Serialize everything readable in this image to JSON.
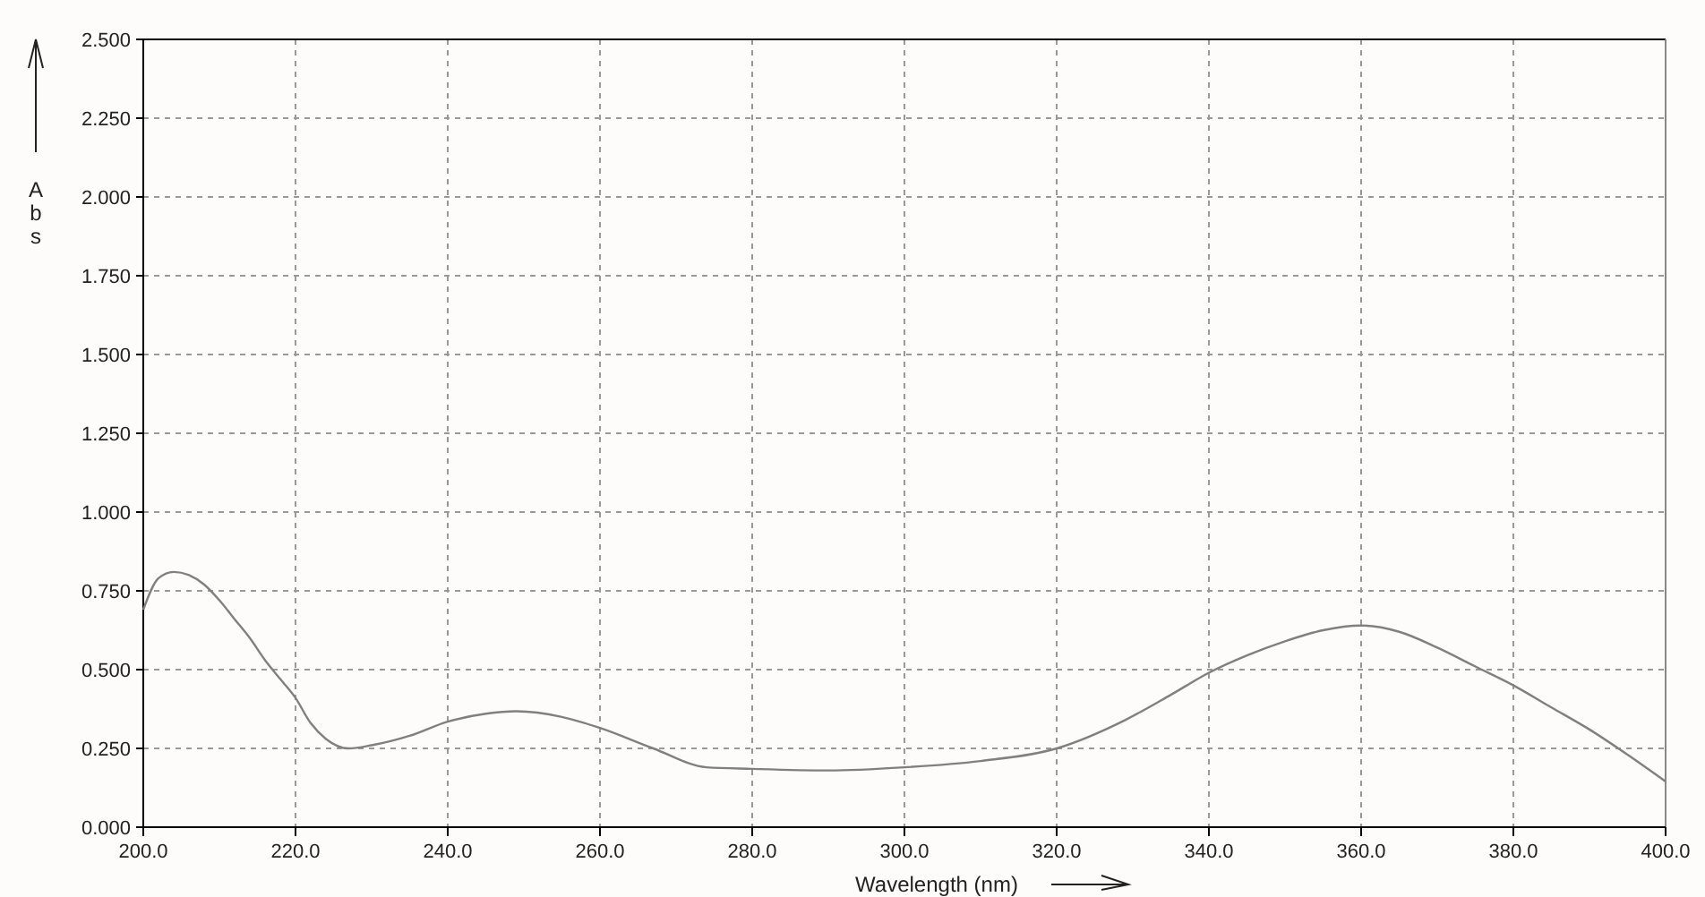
{
  "chart_data": {
    "type": "line",
    "xlabel": "Wavelength (nm)",
    "ylabel": "Abs",
    "x": [
      200,
      202,
      204,
      206,
      208,
      210,
      212,
      214,
      216,
      218,
      220,
      222,
      224,
      227,
      230,
      235,
      240,
      245,
      249,
      255,
      260,
      267,
      274,
      280,
      290,
      300,
      310,
      320,
      329,
      335,
      340,
      345,
      350,
      355,
      360,
      365,
      370,
      375,
      380,
      385,
      390,
      395,
      400
    ],
    "series": [
      {
        "color": "#808080",
        "values": [
          0.69,
          0.79,
          0.81,
          0.8,
          0.77,
          0.72,
          0.66,
          0.6,
          0.53,
          0.47,
          0.41,
          0.33,
          0.28,
          0.25,
          0.26,
          0.29,
          0.335,
          0.36,
          0.368,
          0.35,
          0.315,
          0.25,
          0.19,
          0.185,
          0.18,
          0.19,
          0.21,
          0.25,
          0.34,
          0.42,
          0.49,
          0.545,
          0.59,
          0.625,
          0.64,
          0.62,
          0.57,
          0.51,
          0.45,
          0.38,
          0.31,
          0.23,
          0.145
        ]
      }
    ],
    "xlim": [
      200,
      400
    ],
    "ylim": [
      0,
      2.5
    ],
    "xticks": [
      {
        "value": 200,
        "label": "200.0"
      },
      {
        "value": 220,
        "label": "220.0"
      },
      {
        "value": 240,
        "label": "240.0"
      },
      {
        "value": 260,
        "label": "260.0"
      },
      {
        "value": 280,
        "label": "280.0"
      },
      {
        "value": 300,
        "label": "300.0"
      },
      {
        "value": 320,
        "label": "320.0"
      },
      {
        "value": 340,
        "label": "340.0"
      },
      {
        "value": 360,
        "label": "360.0"
      },
      {
        "value": 380,
        "label": "380.0"
      },
      {
        "value": 400,
        "label": "400.0"
      }
    ],
    "yticks": [
      {
        "value": 0,
        "label": "0.000"
      },
      {
        "value": 0.25,
        "label": "0.250"
      },
      {
        "value": 0.5,
        "label": "0.500"
      },
      {
        "value": 0.75,
        "label": "0.750"
      },
      {
        "value": 1,
        "label": "1.000"
      },
      {
        "value": 1.25,
        "label": "1.250"
      },
      {
        "value": 1.5,
        "label": "1.500"
      },
      {
        "value": 1.75,
        "label": "1.750"
      },
      {
        "value": 2,
        "label": "2.000"
      },
      {
        "value": 2.25,
        "label": "2.250"
      },
      {
        "value": 2.5,
        "label": "2.500"
      }
    ],
    "grid": true,
    "marker": "none",
    "line_style": "solid"
  }
}
